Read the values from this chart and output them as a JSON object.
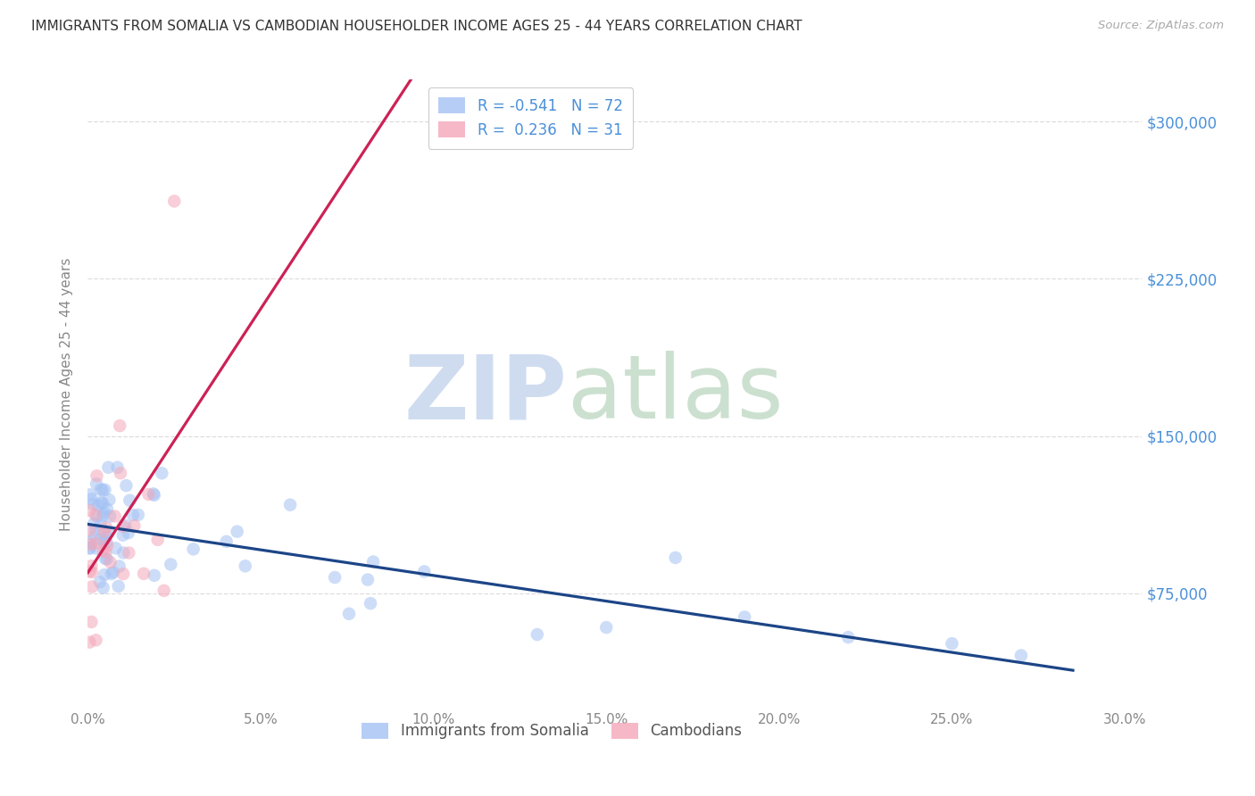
{
  "title": "IMMIGRANTS FROM SOMALIA VS CAMBODIAN HOUSEHOLDER INCOME AGES 25 - 44 YEARS CORRELATION CHART",
  "source": "Source: ZipAtlas.com",
  "xlabel_ticks": [
    "0.0%",
    "5.0%",
    "10.0%",
    "15.0%",
    "20.0%",
    "25.0%",
    "30.0%"
  ],
  "xlabel_vals": [
    0.0,
    0.05,
    0.1,
    0.15,
    0.2,
    0.25,
    0.3
  ],
  "ylabel_labels": [
    "$75,000",
    "$150,000",
    "$225,000",
    "$300,000"
  ],
  "ylabel_values": [
    75000,
    150000,
    225000,
    300000
  ],
  "ylabel_text": "Householder Income Ages 25 - 44 years",
  "xmin": 0.0,
  "xmax": 0.305,
  "ymin": 20000,
  "ymax": 320000,
  "somalia_R": -0.541,
  "somalia_N": 72,
  "cambodian_R": 0.236,
  "cambodian_N": 31,
  "somalia_color": "#a4c2f4",
  "cambodian_color": "#f4a7b9",
  "somalia_line_color": "#1c4587",
  "cambodian_line_color": "#cc2255",
  "cambodian_dash_color": "#f4a7b9",
  "legend_label_somalia": "Immigrants from Somalia",
  "legend_label_cambodian": "Cambodians",
  "watermark_zip_color": "#cfdcf0",
  "watermark_atlas_color": "#cce0d0",
  "bg_color": "#ffffff",
  "grid_color": "#dddddd",
  "tick_color": "#888888",
  "ylabel_color": "#4a90d9",
  "title_color": "#333333",
  "source_color": "#aaaaaa",
  "legend_text_color": "#4a90d9"
}
